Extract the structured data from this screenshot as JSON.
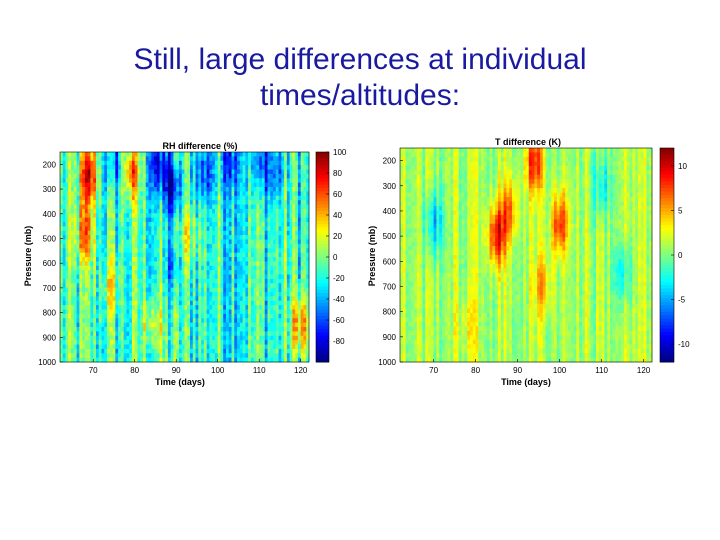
{
  "slide": {
    "title_line1": "Still, large differences at individual",
    "title_line2": "times/altitudes:"
  },
  "chart_data": [
    {
      "type": "heatmap",
      "title": "RH difference (%)",
      "xlabel": "Time (days)",
      "ylabel": "Pressure (mb)",
      "xlim": [
        62,
        122
      ],
      "ylim": [
        1000,
        150
      ],
      "y_reversed": true,
      "xticks": [
        70,
        80,
        90,
        100,
        110,
        120
      ],
      "yticks": [
        200,
        300,
        400,
        500,
        600,
        700,
        800,
        900,
        1000
      ],
      "colorbar": {
        "min": -100,
        "max": 100,
        "ticks": [
          100,
          80,
          60,
          40,
          20,
          0,
          -20,
          -40,
          -60,
          -80
        ]
      },
      "colormap": "jet",
      "background_level": -15,
      "features": [
        {
          "day": 69,
          "pressure": 240,
          "value": 75
        },
        {
          "day": 68,
          "pressure": 480,
          "value": 45
        },
        {
          "day": 79,
          "pressure": 230,
          "value": 50
        },
        {
          "day": 75,
          "pressure": 190,
          "value": -55
        },
        {
          "day": 86,
          "pressure": 200,
          "value": -80
        },
        {
          "day": 89,
          "pressure": 300,
          "value": -85
        },
        {
          "day": 89,
          "pressure": 600,
          "value": -50
        },
        {
          "day": 97,
          "pressure": 230,
          "value": -60
        },
        {
          "day": 103,
          "pressure": 190,
          "value": -55
        },
        {
          "day": 110,
          "pressure": 200,
          "value": -60
        },
        {
          "day": 114,
          "pressure": 230,
          "value": -50
        },
        {
          "day": 120,
          "pressure": 850,
          "value": 50
        },
        {
          "day": 84,
          "pressure": 850,
          "value": 25
        },
        {
          "day": 93,
          "pressure": 480,
          "value": 20
        },
        {
          "day": 74,
          "pressure": 700,
          "value": 15
        }
      ]
    },
    {
      "type": "heatmap",
      "title": "T difference (K)",
      "xlabel": "Time (days)",
      "ylabel": "Pressure (mb)",
      "xlim": [
        62,
        122
      ],
      "ylim": [
        1000,
        150
      ],
      "y_reversed": true,
      "xticks": [
        70,
        80,
        90,
        100,
        110,
        120
      ],
      "yticks": [
        200,
        300,
        400,
        500,
        600,
        700,
        800,
        900,
        1000
      ],
      "colorbar": {
        "min": -12,
        "max": 12,
        "ticks": [
          10,
          5,
          0,
          -5,
          -10
        ]
      },
      "colormap": "jet",
      "background_level": 1,
      "features": [
        {
          "day": 85,
          "pressure": 500,
          "value": 9
        },
        {
          "day": 88,
          "pressure": 400,
          "value": 6
        },
        {
          "day": 94,
          "pressure": 210,
          "value": 8
        },
        {
          "day": 100,
          "pressure": 450,
          "value": 8
        },
        {
          "day": 96,
          "pressure": 700,
          "value": 5
        },
        {
          "day": 70,
          "pressure": 450,
          "value": -4
        },
        {
          "day": 115,
          "pressure": 650,
          "value": -3
        },
        {
          "day": 110,
          "pressure": 300,
          "value": -3
        },
        {
          "day": 78,
          "pressure": 850,
          "value": 3
        }
      ]
    }
  ]
}
